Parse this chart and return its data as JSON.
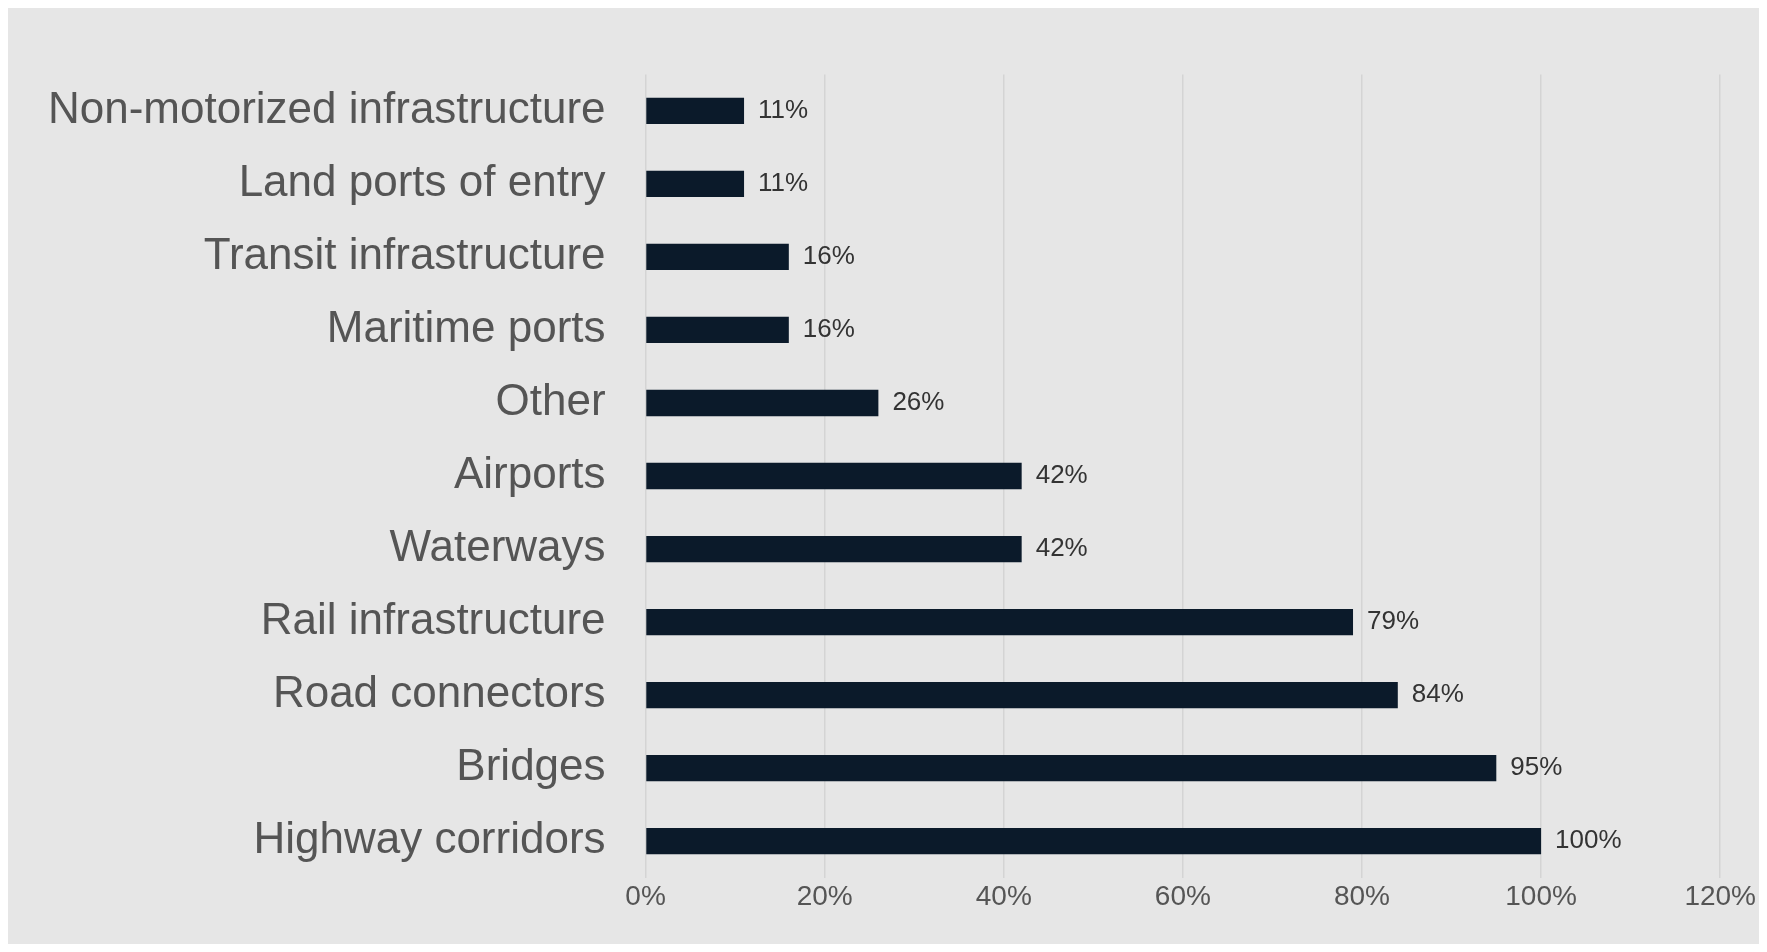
{
  "chart_data": {
    "type": "bar",
    "orientation": "horizontal",
    "categories": [
      "Non-motorized infrastructure",
      "Land ports of entry",
      "Transit infrastructure",
      "Maritime ports",
      "Other",
      "Airports",
      "Waterways",
      "Rail infrastructure",
      "Road connectors",
      "Bridges",
      "Highway corridors"
    ],
    "values": [
      11,
      11,
      16,
      16,
      26,
      42,
      42,
      79,
      84,
      95,
      100
    ],
    "value_labels": [
      "11%",
      "11%",
      "16%",
      "16%",
      "26%",
      "42%",
      "42%",
      "79%",
      "84%",
      "95%",
      "100%"
    ],
    "color": "#0b1a2a",
    "xlim": [
      0,
      120
    ],
    "xticks": [
      {
        "value": 0,
        "label": "0%"
      },
      {
        "value": 20,
        "label": "20%"
      },
      {
        "value": 40,
        "label": "40%"
      },
      {
        "value": 60,
        "label": "60%"
      },
      {
        "value": 80,
        "label": "80%"
      },
      {
        "value": 100,
        "label": "100%"
      },
      {
        "value": 120,
        "label": "120%"
      }
    ],
    "grid": "x",
    "legend": false
  }
}
